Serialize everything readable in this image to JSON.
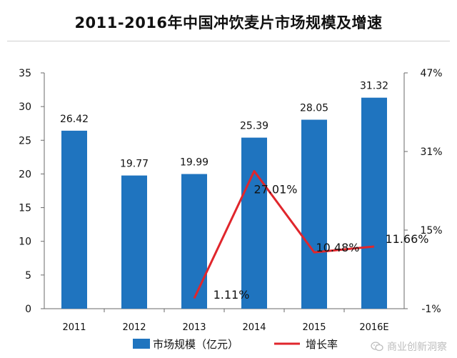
{
  "title": "2011-2016年中国冲饮麦片市场规模及增速",
  "watermark": {
    "text": "商业创新洞察",
    "icon": "wechat-icon"
  },
  "colors": {
    "bar": "#1f74bf",
    "line": "#e0262c",
    "axis": "#6a6a6a",
    "text": "#111111"
  },
  "chart_data": {
    "type": "bar+line",
    "categories": [
      "2011",
      "2012",
      "2013",
      "2014",
      "2015",
      "2016E"
    ],
    "series": [
      {
        "name": "市场规模（亿元）",
        "type": "bar",
        "axis": "left",
        "values": [
          26.42,
          19.77,
          19.99,
          25.39,
          28.05,
          31.32
        ],
        "labels": [
          "26.42",
          "19.77",
          "19.99",
          "25.39",
          "28.05",
          "31.32"
        ]
      },
      {
        "name": "增长率",
        "type": "line",
        "axis": "right",
        "values": [
          null,
          null,
          1.11,
          27.01,
          10.48,
          11.66
        ],
        "labels": [
          "",
          "",
          "1.11%",
          "27.01%",
          "10.48%",
          "11.66%"
        ]
      }
    ],
    "y_left": {
      "min": 0,
      "max": 35,
      "ticks": [
        0,
        5,
        10,
        15,
        20,
        25,
        30,
        35
      ],
      "tick_labels": [
        "0",
        "5",
        "10",
        "15",
        "20",
        "25",
        "30",
        "35"
      ]
    },
    "y_right": {
      "min": -1,
      "max": 47,
      "ticks": [
        -1,
        15,
        31,
        47
      ],
      "tick_labels": [
        "-1%",
        "15%",
        "31%",
        "47%"
      ]
    },
    "legend": {
      "position": "bottom",
      "items": [
        "市场规模（亿元）",
        "增长率"
      ]
    },
    "grid": false
  }
}
